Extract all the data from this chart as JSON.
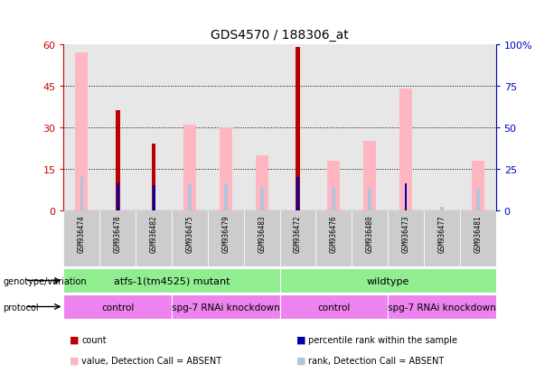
{
  "title": "GDS4570 / 188306_at",
  "samples": [
    "GSM936474",
    "GSM936478",
    "GSM936482",
    "GSM936475",
    "GSM936479",
    "GSM936483",
    "GSM936472",
    "GSM936476",
    "GSM936480",
    "GSM936473",
    "GSM936477",
    "GSM936481"
  ],
  "count": [
    null,
    36,
    24,
    null,
    null,
    null,
    59,
    null,
    null,
    null,
    null,
    null
  ],
  "percentile_rank": [
    null,
    16,
    15,
    null,
    null,
    null,
    20,
    null,
    null,
    16,
    null,
    null
  ],
  "value_absent": [
    57,
    null,
    null,
    31,
    30,
    20,
    null,
    18,
    25,
    44,
    null,
    18
  ],
  "rank_absent": [
    20,
    null,
    null,
    16,
    16,
    14,
    null,
    14,
    13,
    null,
    2,
    13
  ],
  "ylim_left": [
    0,
    60
  ],
  "ylim_right": [
    0,
    100
  ],
  "yticks_left": [
    0,
    15,
    30,
    45,
    60
  ],
  "yticks_right": [
    0,
    25,
    50,
    75,
    100
  ],
  "colors": {
    "count": "#BB0000",
    "percentile_rank": "#0000AA",
    "value_absent": "#FFB6C1",
    "rank_absent": "#B0C4DE",
    "axis_left": "#CC0000",
    "axis_right": "#0000CC",
    "bg_sample_odd": "#CCCCCC",
    "bg_sample_even": "#BBBBBB",
    "genotype_color": "#90EE90",
    "protocol_color": "#EE82EE",
    "white": "#FFFFFF"
  },
  "legend_items": [
    {
      "label": "count",
      "color": "#BB0000",
      "square": true
    },
    {
      "label": "percentile rank within the sample",
      "color": "#0000AA",
      "square": true
    },
    {
      "label": "value, Detection Call = ABSENT",
      "color": "#FFB6C1",
      "square": true
    },
    {
      "label": "rank, Detection Call = ABSENT",
      "color": "#B0C4DE",
      "square": true
    }
  ],
  "geno_groups": [
    {
      "label": "atfs-1(tm4525) mutant",
      "start": 0,
      "end": 6
    },
    {
      "label": "wildtype",
      "start": 6,
      "end": 12
    }
  ],
  "proto_groups": [
    {
      "label": "control",
      "start": 0,
      "end": 3
    },
    {
      "label": "spg-7 RNAi knockdown",
      "start": 3,
      "end": 6
    },
    {
      "label": "control",
      "start": 6,
      "end": 9
    },
    {
      "label": "spg-7 RNAi knockdown",
      "start": 9,
      "end": 12
    }
  ]
}
